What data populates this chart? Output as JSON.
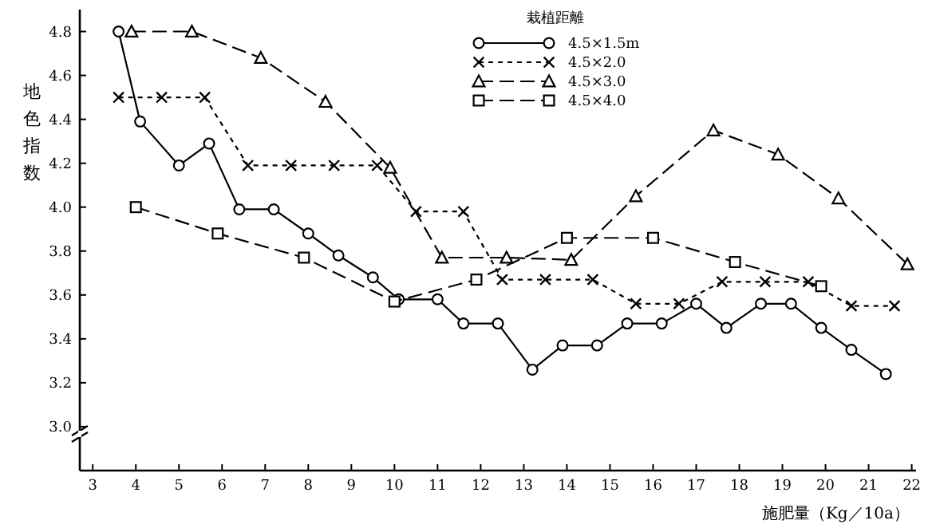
{
  "chart_data": {
    "type": "line",
    "xlabel": "施肥量（Kg／10a）",
    "ylabel": "地色指数",
    "legend_title": "栽植距離",
    "legend": "top right",
    "grid": false,
    "xlim": [
      2.7,
      22.1
    ],
    "xticks": [
      3,
      4,
      5,
      6,
      7,
      8,
      9,
      10,
      11,
      12,
      13,
      14,
      15,
      16,
      17,
      18,
      19,
      20,
      21,
      22
    ],
    "ylim": [
      2.8,
      4.9
    ],
    "yticks": [
      {
        "value": 3,
        "label": "3.0"
      },
      3.2,
      3.4,
      3.6,
      3.8,
      {
        "value": 4,
        "label": "4.0"
      },
      4.2,
      4.4,
      4.6,
      4.8
    ],
    "series": [
      {
        "name": "4.5×1.5m",
        "color": "#000000",
        "marker": "circle",
        "line_style": "solid",
        "x": [
          3.6,
          4.1,
          5.0,
          5.7,
          6.4,
          7.2,
          8.0,
          8.7,
          9.5,
          10.1,
          11.0,
          11.6,
          12.4,
          13.2,
          13.9,
          14.7,
          15.4,
          16.2,
          17.0,
          17.7,
          18.5,
          19.2,
          19.9,
          20.6,
          21.4
        ],
        "values": [
          4.8,
          4.39,
          4.19,
          4.29,
          3.99,
          3.99,
          3.88,
          3.78,
          3.68,
          3.58,
          3.58,
          3.47,
          3.47,
          3.26,
          3.37,
          3.37,
          3.47,
          3.47,
          3.56,
          3.45,
          3.56,
          3.56,
          3.45,
          3.35,
          3.24
        ]
      },
      {
        "name": "4.5×2.0",
        "color": "#000000",
        "marker": "cross",
        "line_style": "dotted",
        "x": [
          3.6,
          4.6,
          5.6,
          6.6,
          7.6,
          8.6,
          9.6,
          10.5,
          11.6,
          12.5,
          13.5,
          14.6,
          15.6,
          16.6,
          17.6,
          18.6,
          19.6,
          20.6,
          21.6
        ],
        "values": [
          4.5,
          4.5,
          4.5,
          4.19,
          4.19,
          4.19,
          4.19,
          3.98,
          3.98,
          3.67,
          3.67,
          3.67,
          3.56,
          3.56,
          3.66,
          3.66,
          3.66,
          3.55,
          3.55
        ]
      },
      {
        "name": "4.5×3.0",
        "color": "#000000",
        "marker": "triangle",
        "line_style": "dashed",
        "x": [
          3.9,
          5.3,
          6.9,
          8.4,
          9.9,
          11.1,
          12.6,
          14.1,
          15.6,
          17.4,
          18.9,
          20.3,
          21.9
        ],
        "values": [
          4.8,
          4.8,
          4.68,
          4.48,
          4.18,
          3.77,
          3.77,
          3.76,
          4.05,
          4.35,
          4.24,
          4.04,
          3.74
        ]
      },
      {
        "name": "4.5×4.0",
        "color": "#000000",
        "marker": "square",
        "line_style": "dashed",
        "x": [
          4.0,
          5.9,
          7.9,
          10.0,
          11.9,
          14.0,
          16.0,
          17.9,
          19.9
        ],
        "values": [
          4.0,
          3.88,
          3.77,
          3.57,
          3.67,
          3.86,
          3.86,
          3.75,
          3.64
        ]
      }
    ]
  }
}
